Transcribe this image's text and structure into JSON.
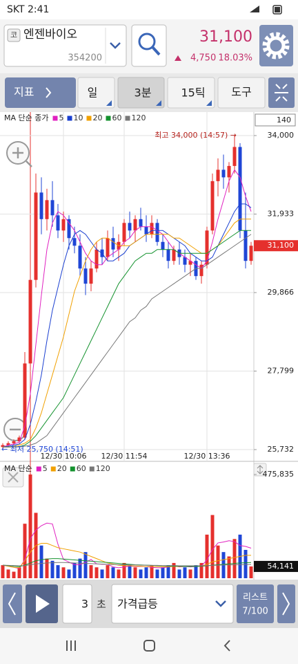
{
  "status_bar": {
    "carrier_time": "SKT 2:41"
  },
  "header": {
    "code_badge": "코",
    "name": "엔젠바이오",
    "code": "354200",
    "price": "31,100",
    "change": "4,750",
    "change_pct": "18.03%"
  },
  "toolbar": {
    "indicator": "지표",
    "periods": [
      "일",
      "3분",
      "15틱",
      "도구"
    ]
  },
  "bottom_bar": {
    "interval": "3",
    "unit": "초",
    "mode": "가격급등",
    "list_label": "리스트",
    "list_count": "7/100"
  },
  "chart_data": [
    {
      "type": "candlestick",
      "legend_title": "MA 단순 종가",
      "candle_count": 140,
      "categories": [
        null,
        null,
        null,
        null,
        null,
        null,
        null,
        null,
        null,
        null,
        null,
        "12/30 10:06",
        null,
        null,
        null,
        null,
        null,
        null,
        null,
        null,
        null,
        null,
        "12/30 11:54",
        null,
        null,
        null,
        null,
        null,
        null,
        null,
        null,
        null,
        null,
        null,
        null,
        null,
        null,
        "12/30 13:36",
        null,
        null,
        null,
        null,
        null,
        null,
        null,
        null
      ],
      "open": [
        25800,
        25850,
        25900,
        25950,
        26050,
        28000,
        30200,
        32500,
        31800,
        32300,
        31900,
        31500,
        31800,
        31300,
        31100,
        30500,
        30100,
        30500,
        31000,
        30800,
        31300,
        31000,
        31200,
        31700,
        31500,
        31800,
        31600,
        31400,
        31700,
        31200,
        31000,
        30700,
        31000,
        30800,
        30600,
        30700,
        30300,
        30600,
        31500,
        32800,
        33100,
        32900,
        33200,
        33700,
        31500,
        30700
      ],
      "high": [
        25900,
        25950,
        26000,
        26100,
        28300,
        30500,
        33000,
        32900,
        32600,
        32800,
        32200,
        32000,
        31900,
        31600,
        31400,
        30800,
        30700,
        31200,
        31300,
        31500,
        31600,
        31400,
        31800,
        32000,
        31900,
        32100,
        31900,
        31900,
        31800,
        31400,
        31200,
        31100,
        31200,
        31000,
        30900,
        30800,
        30700,
        31600,
        33000,
        33400,
        33500,
        33300,
        34000,
        33800,
        32500,
        31200
      ],
      "low": [
        25750,
        25800,
        25850,
        25900,
        26000,
        27800,
        30000,
        31400,
        31500,
        31600,
        31300,
        31200,
        31000,
        30900,
        30300,
        29800,
        29900,
        30400,
        30600,
        30700,
        30800,
        30700,
        31100,
        31300,
        31200,
        31500,
        31200,
        31300,
        31100,
        30800,
        30500,
        30600,
        30600,
        30400,
        30300,
        30200,
        30100,
        30500,
        31400,
        32400,
        32600,
        32500,
        33000,
        31300,
        30500,
        30600
      ],
      "close": [
        25850,
        25900,
        25950,
        26050,
        28000,
        30200,
        32500,
        31800,
        32300,
        31900,
        31500,
        31800,
        31300,
        31100,
        30500,
        30100,
        30500,
        31000,
        30800,
        31300,
        31000,
        31200,
        31700,
        31500,
        31800,
        31600,
        31400,
        31700,
        31200,
        31000,
        30700,
        31000,
        30800,
        30600,
        30700,
        30300,
        30600,
        31500,
        32800,
        33100,
        32900,
        33200,
        33700,
        31500,
        30700,
        31100
      ],
      "up_color": "#e5302d",
      "down_color": "#1f46d6",
      "series": [
        {
          "name": "5",
          "color": "#e020c0",
          "values": [
            25800,
            25850,
            25880,
            25930,
            26350,
            27200,
            28500,
            29800,
            31000,
            31700,
            32000,
            31900,
            31700,
            31500,
            31200,
            30900,
            30700,
            30600,
            30600,
            30800,
            30900,
            31000,
            31200,
            31300,
            31500,
            31600,
            31600,
            31600,
            31500,
            31400,
            31200,
            31000,
            30900,
            30800,
            30700,
            30600,
            30500,
            30700,
            31200,
            31800,
            32300,
            32800,
            33100,
            32900,
            32400,
            32000
          ]
        },
        {
          "name": "10",
          "color": "#1a3fd0",
          "values": [
            25800,
            25820,
            25850,
            25880,
            26000,
            26400,
            27000,
            27700,
            28600,
            29400,
            30000,
            30600,
            31100,
            31400,
            31500,
            31400,
            31200,
            31000,
            30900,
            30700,
            30700,
            30800,
            30900,
            31100,
            31200,
            31300,
            31400,
            31500,
            31500,
            31500,
            31400,
            31300,
            31200,
            31100,
            30900,
            30800,
            30700,
            30700,
            30800,
            31100,
            31400,
            31700,
            32000,
            32200,
            32200,
            32100
          ]
        },
        {
          "name": "20",
          "color": "#f0a000",
          "values": [
            25800,
            25800,
            25820,
            25850,
            25900,
            26000,
            26300,
            26700,
            27200,
            27700,
            28200,
            28700,
            29300,
            29900,
            30300,
            30700,
            31000,
            31200,
            31300,
            31300,
            31200,
            31100,
            31100,
            31100,
            31200,
            31300,
            31400,
            31400,
            31400,
            31400,
            31400,
            31300,
            31300,
            31200,
            31100,
            31000,
            30900,
            30900,
            31000,
            31100,
            31300,
            31500,
            31700,
            31800,
            31800,
            31800
          ]
        },
        {
          "name": "60",
          "color": "#14922e",
          "values": [
            25800,
            25800,
            25800,
            25810,
            25850,
            25950,
            26100,
            26300,
            26500,
            26700,
            26900,
            27100,
            27400,
            27700,
            28000,
            28300,
            28600,
            28900,
            29200,
            29500,
            29800,
            30100,
            30300,
            30500,
            30700,
            30800,
            30900,
            30900,
            31000,
            31000,
            31000,
            31000,
            30900,
            30900,
            30900,
            30900,
            30900,
            30900,
            31000,
            31100,
            31200,
            31300,
            31400,
            31500,
            31500,
            31500
          ]
        },
        {
          "name": "120",
          "color": "#777777",
          "values": [
            25800,
            25800,
            25800,
            25800,
            25820,
            25850,
            25900,
            26000,
            26100,
            26300,
            26500,
            26700,
            26900,
            27100,
            27300,
            27500,
            27700,
            27900,
            28100,
            28300,
            28500,
            28700,
            28900,
            29100,
            29200,
            29400,
            29500,
            29700,
            29800,
            29900,
            30000,
            30100,
            30200,
            30300,
            30400,
            30500,
            30500,
            30600,
            30700,
            30800,
            30900,
            31000,
            31100,
            31200,
            31300,
            31400
          ]
        }
      ],
      "ylim": [
        25732,
        34000
      ],
      "yticks": [
        {
          "value": 34000,
          "label": "34,000"
        },
        {
          "value": 31933,
          "label": "31,933"
        },
        {
          "value": 29866,
          "label": "29,866"
        },
        {
          "value": 27799,
          "label": "27,799"
        },
        {
          "value": 25732,
          "label": "25,732"
        }
      ],
      "current": {
        "value": 31100,
        "label": "31,100"
      },
      "annotations": {
        "high": "최고 34,000 (14:57) →",
        "low": "← 최저 25,750 (14:51)"
      },
      "grid": true
    },
    {
      "type": "bar",
      "legend_title": "MA 단순",
      "values": [
        60000,
        40000,
        30000,
        50000,
        250000,
        475835,
        300000,
        150000,
        90000,
        80000,
        60000,
        50000,
        40000,
        70000,
        90000,
        120000,
        60000,
        50000,
        40000,
        60000,
        50000,
        40000,
        70000,
        60000,
        50000,
        40000,
        50000,
        60000,
        40000,
        50000,
        60000,
        70000,
        40000,
        50000,
        40000,
        60000,
        70000,
        200000,
        290000,
        150000,
        120000,
        100000,
        180000,
        200000,
        130000,
        54141
      ],
      "series": [
        {
          "name": "5",
          "color": "#e020c0",
          "values": [
            60000,
            55000,
            50000,
            45000,
            86000,
            181000,
            221000,
            241000,
            253000,
            249000,
            156000,
            86000,
            74000,
            62000,
            62000,
            74000,
            86000,
            66000,
            64000,
            64000,
            52000,
            48000,
            52000,
            56000,
            54000,
            54000,
            54000,
            50000,
            48000,
            48000,
            52000,
            56000,
            52000,
            54000,
            52000,
            54000,
            56000,
            84000,
            132000,
            162000,
            166000,
            172000,
            168000,
            150000,
            146000,
            138000
          ]
        },
        {
          "name": "20",
          "color": "#f0a000",
          "values": [
            60000,
            55000,
            50000,
            48000,
            80000,
            120000,
            150000,
            160000,
            160000,
            150000,
            140000,
            135000,
            130000,
            125000,
            120000,
            110000,
            100000,
            90000,
            80000,
            70000,
            65000,
            60000,
            58000,
            57000,
            56000,
            55000,
            54000,
            54000,
            53000,
            53000,
            53000,
            54000,
            54000,
            54000,
            54000,
            55000,
            56000,
            64000,
            75000,
            80000,
            85000,
            90000,
            95000,
            100000,
            105000,
            105000
          ]
        },
        {
          "name": "60",
          "color": "#14922e",
          "values": [
            60000,
            58000,
            55000,
            53000,
            60000,
            70000,
            80000,
            85000,
            88000,
            90000,
            90000,
            88000,
            86000,
            84000,
            82000,
            80000,
            78000,
            76000,
            74000,
            72000,
            70000,
            68000,
            66000,
            64000,
            62000,
            61000,
            60000,
            59000,
            58000,
            57000,
            56000,
            55000,
            55000,
            54000,
            54000,
            54000,
            55000,
            57000,
            60000,
            62000,
            64000,
            66000,
            68000,
            70000,
            71000,
            72000
          ]
        },
        {
          "name": "120",
          "color": "#777777",
          "values": [
            60000,
            59000,
            58000,
            57000,
            58000,
            62000,
            66000,
            68000,
            70000,
            71000,
            72000,
            72000,
            71000,
            70000,
            69000,
            68000,
            67000,
            66000,
            65000,
            64000,
            63000,
            62000,
            62000,
            61000,
            61000,
            60000,
            60000,
            59000,
            59000,
            58000,
            58000,
            58000,
            57000,
            57000,
            57000,
            57000,
            57000,
            58000,
            59000,
            60000,
            61000,
            61000,
            62000,
            62000,
            63000,
            63000
          ]
        }
      ],
      "ylim": [
        0,
        475835
      ],
      "yticks": [
        {
          "value": 475835,
          "label": "475,835"
        }
      ],
      "current": {
        "value": 54141,
        "label": "54,141"
      }
    }
  ]
}
